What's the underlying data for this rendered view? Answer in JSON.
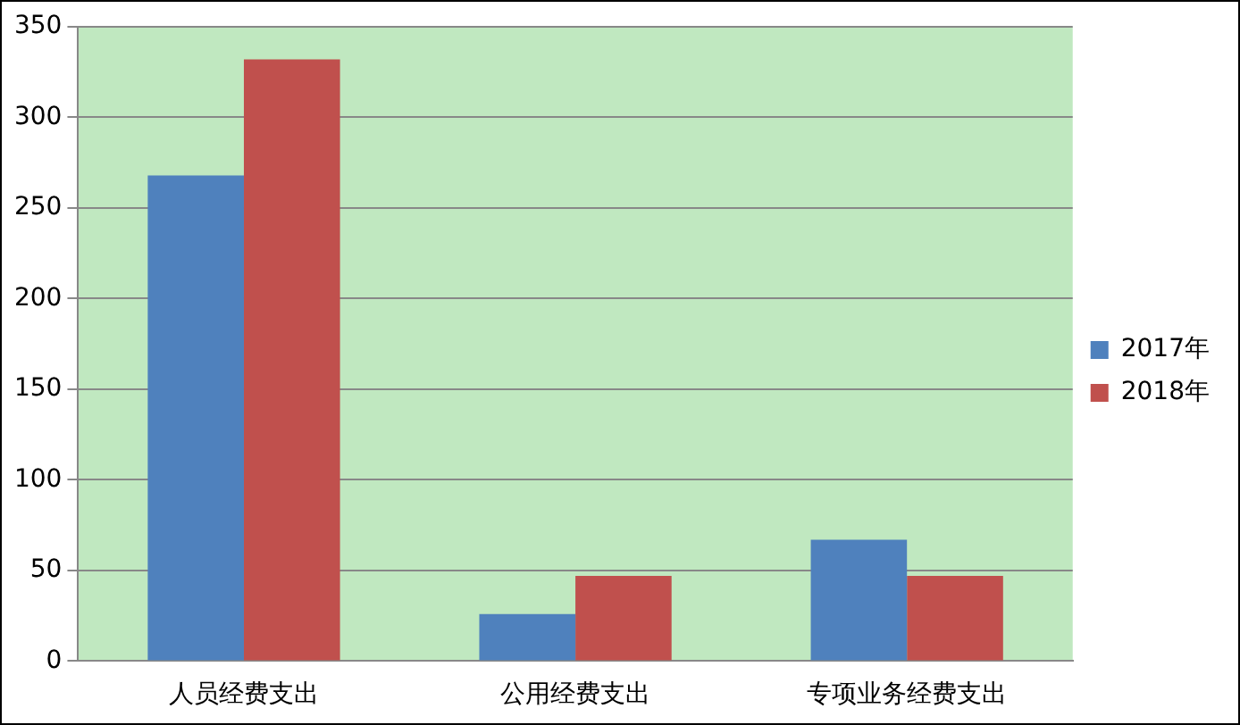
{
  "chart_data": {
    "type": "bar",
    "categories": [
      "人员经费支出",
      "公用经费支出",
      "专项业务经费支出"
    ],
    "series": [
      {
        "name": "2017年",
        "color": "#4f81bd",
        "values": [
          268,
          26,
          67
        ]
      },
      {
        "name": "2018年",
        "color": "#c0504d",
        "values": [
          332,
          47,
          47
        ]
      }
    ],
    "ylim": [
      0,
      350
    ],
    "yticks": [
      0,
      50,
      100,
      150,
      200,
      250,
      300,
      350
    ],
    "grid": "y",
    "legend": "right"
  }
}
